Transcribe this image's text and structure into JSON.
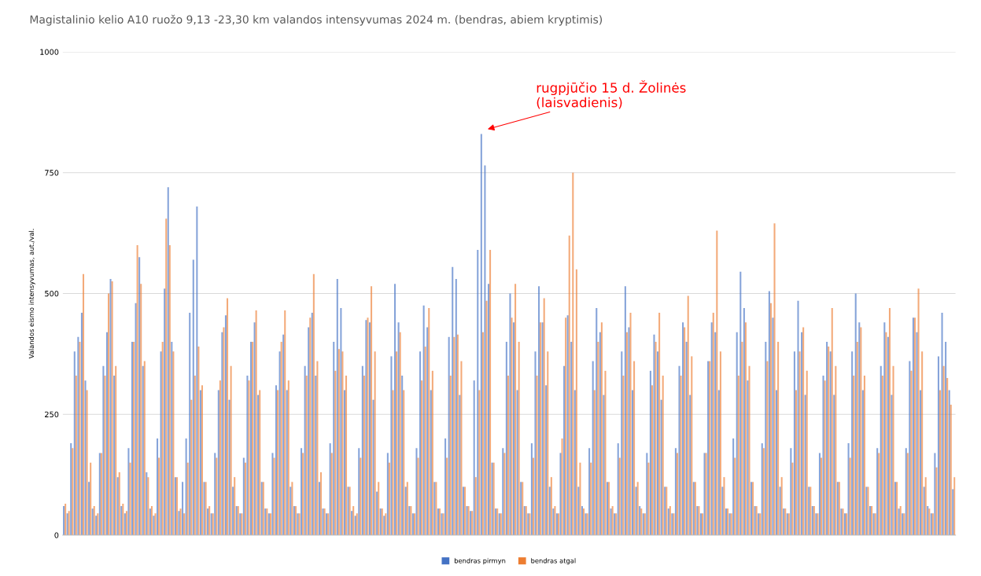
{
  "chart_data": {
    "type": "bar",
    "title": "Magistalinio kelio A10 ruožo 9,13 -23,30 km valandos intensyvumas 2024 m. (bendras, abiem kryptimis)",
    "ylabel": "Valandos eismo intensyvumas, aut./val.",
    "annotations": [
      "rugpjūčio 15 d. Žolinės\n(laisvadienis)"
    ],
    "categories": [
      null,
      null,
      null,
      null,
      null,
      null,
      null,
      null,
      null,
      null,
      null,
      null,
      null,
      null,
      null,
      null,
      null,
      null,
      null,
      null,
      null,
      null,
      null,
      null,
      null,
      null,
      null,
      null,
      null,
      null,
      null,
      null,
      null,
      null,
      null,
      null,
      null,
      null,
      null,
      null,
      null,
      null,
      null,
      null,
      null,
      null,
      null,
      null,
      null,
      null,
      null,
      null,
      null,
      null,
      null,
      null,
      null,
      null,
      null,
      null,
      null,
      null,
      null,
      null,
      null,
      null,
      null,
      null,
      null,
      null,
      null,
      null,
      null,
      null,
      null,
      null,
      null,
      null,
      null,
      null,
      null,
      null,
      null,
      null,
      null,
      null,
      null,
      null,
      null,
      null,
      null,
      null,
      null,
      null,
      null,
      null,
      null,
      null,
      null,
      null,
      null,
      null,
      null,
      null,
      null,
      null,
      null,
      null,
      null,
      null,
      null,
      null,
      null,
      null,
      null,
      null,
      null,
      null,
      null,
      null,
      null,
      null,
      null,
      null,
      null,
      null,
      null,
      null,
      null,
      null,
      null,
      null,
      null,
      null,
      null,
      null,
      null,
      null,
      null,
      null,
      null,
      null,
      null,
      null,
      null,
      null,
      null,
      null,
      null,
      null,
      null,
      null,
      null,
      null,
      null,
      null,
      null,
      null,
      null,
      null,
      null,
      null,
      null,
      null,
      null,
      null,
      null,
      null,
      null,
      null,
      null,
      null,
      null,
      null,
      null,
      null,
      null,
      null,
      null,
      null,
      null,
      null,
      null,
      null,
      null,
      null,
      null,
      null,
      null,
      null,
      null,
      null,
      null,
      null,
      null,
      null,
      null,
      null,
      null,
      null,
      null,
      null,
      null,
      null,
      null,
      null,
      null,
      null,
      null,
      null,
      null,
      null,
      null,
      null,
      null,
      null,
      null,
      null,
      null,
      null,
      null,
      null,
      null,
      null,
      null,
      null,
      null,
      null,
      null,
      null,
      null,
      null,
      null,
      null,
      null,
      null,
      null,
      null,
      null,
      null,
      null,
      null,
      null,
      null,
      null,
      null,
      null,
      null
    ],
    "series": [
      {
        "name": "bendras pirmyn",
        "color": "#4472c4",
        "values": [
          60,
          45,
          190,
          380,
          410,
          460,
          320,
          110,
          55,
          40,
          170,
          350,
          420,
          530,
          330,
          120,
          60,
          45,
          180,
          400,
          480,
          575,
          350,
          130,
          55,
          40,
          200,
          380,
          510,
          720,
          400,
          120,
          50,
          110,
          200,
          460,
          570,
          680,
          300,
          110,
          55,
          45,
          170,
          300,
          420,
          455,
          280,
          100,
          60,
          45,
          160,
          330,
          400,
          440,
          290,
          110,
          55,
          45,
          170,
          310,
          380,
          415,
          300,
          100,
          60,
          45,
          180,
          350,
          430,
          460,
          330,
          110,
          55,
          45,
          190,
          400,
          530,
          470,
          300,
          100,
          50,
          40,
          180,
          350,
          445,
          440,
          280,
          90,
          55,
          40,
          170,
          370,
          520,
          440,
          330,
          100,
          60,
          45,
          180,
          380,
          475,
          430,
          300,
          110,
          55,
          45,
          200,
          410,
          555,
          530,
          290,
          100,
          60,
          50,
          320,
          590,
          830,
          765,
          520,
          150,
          55,
          45,
          180,
          400,
          500,
          440,
          300,
          110,
          60,
          45,
          190,
          380,
          515,
          440,
          310,
          100,
          55,
          45,
          170,
          350,
          455,
          400,
          300,
          100,
          60,
          45,
          180,
          360,
          470,
          420,
          290,
          110,
          55,
          45,
          190,
          380,
          515,
          430,
          300,
          100,
          60,
          45,
          170,
          340,
          415,
          380,
          280,
          100,
          55,
          45,
          180,
          350,
          440,
          400,
          290,
          110,
          60,
          45,
          170,
          360,
          440,
          420,
          300,
          100,
          55,
          45,
          200,
          420,
          545,
          470,
          320,
          110,
          60,
          45,
          190,
          400,
          505,
          450,
          300,
          100,
          55,
          45,
          180,
          380,
          485,
          420,
          290,
          100,
          60,
          45,
          170,
          330,
          400,
          380,
          290,
          110,
          55,
          45,
          190,
          380,
          500,
          440,
          300,
          100,
          60,
          45,
          180,
          350,
          440,
          410,
          290,
          110,
          55,
          45,
          180,
          360,
          450,
          420,
          300,
          100,
          60,
          45,
          170,
          370,
          460,
          400,
          300,
          95
        ]
      },
      {
        "name": "bendras atgal",
        "color": "#ed7d31",
        "values": [
          65,
          50,
          180,
          330,
          400,
          540,
          300,
          150,
          60,
          45,
          170,
          330,
          500,
          525,
          350,
          130,
          65,
          50,
          150,
          400,
          600,
          520,
          360,
          120,
          60,
          45,
          160,
          400,
          655,
          600,
          380,
          120,
          55,
          45,
          150,
          280,
          330,
          390,
          310,
          110,
          60,
          45,
          160,
          320,
          430,
          490,
          350,
          120,
          60,
          45,
          150,
          320,
          400,
          465,
          300,
          110,
          55,
          45,
          160,
          300,
          400,
          465,
          320,
          110,
          60,
          45,
          170,
          330,
          450,
          540,
          360,
          130,
          55,
          45,
          170,
          340,
          385,
          380,
          330,
          100,
          60,
          45,
          160,
          330,
          450,
          515,
          380,
          110,
          55,
          45,
          150,
          300,
          380,
          420,
          300,
          110,
          60,
          45,
          160,
          320,
          390,
          470,
          340,
          110,
          55,
          45,
          160,
          330,
          410,
          415,
          360,
          100,
          60,
          50,
          120,
          300,
          420,
          485,
          590,
          150,
          55,
          45,
          170,
          330,
          450,
          520,
          400,
          110,
          60,
          45,
          160,
          330,
          440,
          490,
          380,
          120,
          60,
          45,
          200,
          450,
          620,
          750,
          550,
          150,
          55,
          45,
          150,
          300,
          400,
          440,
          340,
          110,
          60,
          45,
          160,
          330,
          420,
          460,
          360,
          110,
          55,
          45,
          150,
          310,
          400,
          460,
          330,
          100,
          60,
          45,
          170,
          330,
          430,
          495,
          370,
          110,
          60,
          45,
          170,
          360,
          460,
          630,
          380,
          120,
          55,
          45,
          160,
          330,
          400,
          440,
          350,
          110,
          60,
          45,
          180,
          360,
          480,
          645,
          400,
          120,
          55,
          45,
          150,
          300,
          380,
          430,
          340,
          100,
          60,
          45,
          160,
          320,
          390,
          470,
          350,
          110,
          55,
          45,
          160,
          330,
          400,
          430,
          330,
          100,
          60,
          45,
          170,
          330,
          420,
          470,
          350,
          110,
          60,
          45,
          170,
          340,
          450,
          510,
          380,
          120,
          55,
          45,
          140,
          300,
          350,
          325,
          270,
          120
        ]
      }
    ],
    "ylim": [
      0,
      1000
    ],
    "yticks": [
      0,
      250,
      500,
      750,
      1000
    ],
    "grid": "y",
    "legend": "bottom"
  }
}
